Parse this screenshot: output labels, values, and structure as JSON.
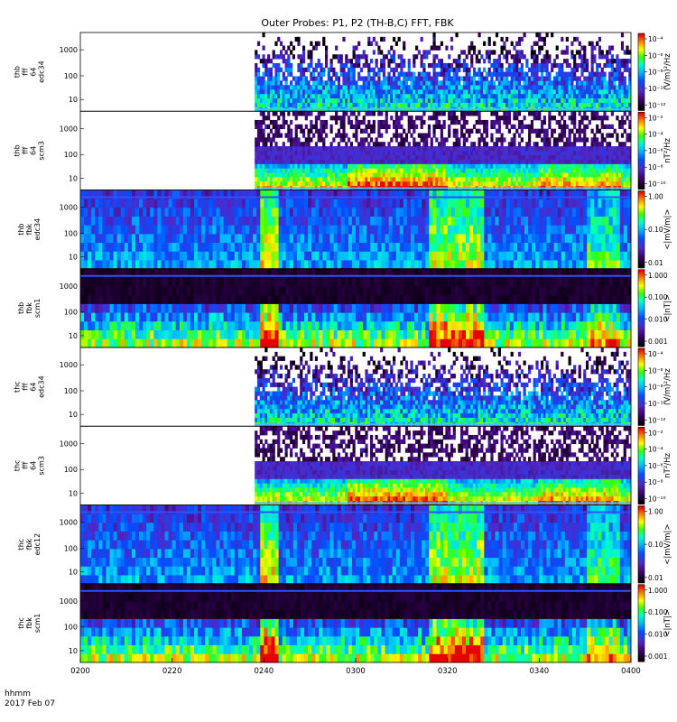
{
  "chart_data": {
    "type": "heatmap",
    "title": "Outer Probes: P1, P2 (TH-B,C) FFT, FBK",
    "time_axis": {
      "ticks": [
        "0200",
        "0220",
        "0240",
        "0300",
        "0320",
        "0340",
        "0400"
      ],
      "range_minutes": [
        0,
        120
      ],
      "label_line1": "hhmm",
      "label_line2": "2017 Feb 07"
    },
    "panels": [
      {
        "label": [
          "thb",
          "fff",
          "64",
          "edc34"
        ],
        "kind": "fff_e",
        "yticks": [
          "1000",
          "100",
          "10"
        ],
        "data_start_min": 38,
        "colorbar": {
          "ticks": [
            "10⁻⁴",
            "10⁻⁶",
            "10⁻⁸",
            "10⁻¹⁰",
            "10⁻¹²"
          ],
          "label": "(V/m)²/Hz"
        }
      },
      {
        "label": [
          "thb",
          "fff",
          "64",
          "scm3"
        ],
        "kind": "fff_b",
        "yticks": [
          "1000",
          "100",
          "10"
        ],
        "data_start_min": 38,
        "colorbar": {
          "ticks": [
            "10⁻²",
            "10⁻⁴",
            "10⁻⁶",
            "10⁻⁸",
            "10⁻¹⁰"
          ],
          "label": "nT²/Hz"
        }
      },
      {
        "label": [
          "thb",
          "fbk",
          "edc34"
        ],
        "kind": "fbk_e",
        "yticks": [
          "1000",
          "100",
          "10"
        ],
        "data_start_min": 0,
        "colorbar": {
          "ticks": [
            "1.00",
            "0.10",
            "0.01"
          ],
          "label": "<|mV/m|>"
        }
      },
      {
        "label": [
          "thb",
          "fbk",
          "scm1"
        ],
        "kind": "fbk_b",
        "yticks": [
          "1000",
          "100",
          "10"
        ],
        "data_start_min": 0,
        "colorbar": {
          "ticks": [
            "1.000",
            "0.100",
            "0.010",
            "0.001"
          ],
          "label": "<|nT|>"
        }
      },
      {
        "label": [
          "thc",
          "fff",
          "64",
          "edc34"
        ],
        "kind": "fff_e",
        "yticks": [
          "1000",
          "100",
          "10"
        ],
        "data_start_min": 38,
        "colorbar": {
          "ticks": [
            "10⁻⁴",
            "10⁻⁶",
            "10⁻⁸",
            "10⁻¹⁰",
            "10⁻¹²"
          ],
          "label": "(V/m)²/Hz"
        }
      },
      {
        "label": [
          "thc",
          "fff",
          "64",
          "scm3"
        ],
        "kind": "fff_b",
        "yticks": [
          "1000",
          "100",
          "10"
        ],
        "data_start_min": 38,
        "colorbar": {
          "ticks": [
            "10⁻²",
            "10⁻⁴",
            "10⁻⁶",
            "10⁻⁸",
            "10⁻¹⁰"
          ],
          "label": "nT²/Hz"
        }
      },
      {
        "label": [
          "thc",
          "fbk",
          "edc12"
        ],
        "kind": "fbk_e",
        "yticks": [
          "1000",
          "100",
          "10"
        ],
        "data_start_min": 0,
        "colorbar": {
          "ticks": [
            "1.00",
            "0.10",
            "0.01"
          ],
          "label": "<|mV/m|>"
        }
      },
      {
        "label": [
          "thc",
          "fbk",
          "scm1"
        ],
        "kind": "fbk_b",
        "yticks": [
          "1000",
          "100",
          "10"
        ],
        "data_start_min": 0,
        "colorbar": {
          "ticks": [
            "1.000",
            "0.100",
            "0.010",
            "0.001"
          ],
          "label": "<|nT|>"
        }
      }
    ]
  }
}
